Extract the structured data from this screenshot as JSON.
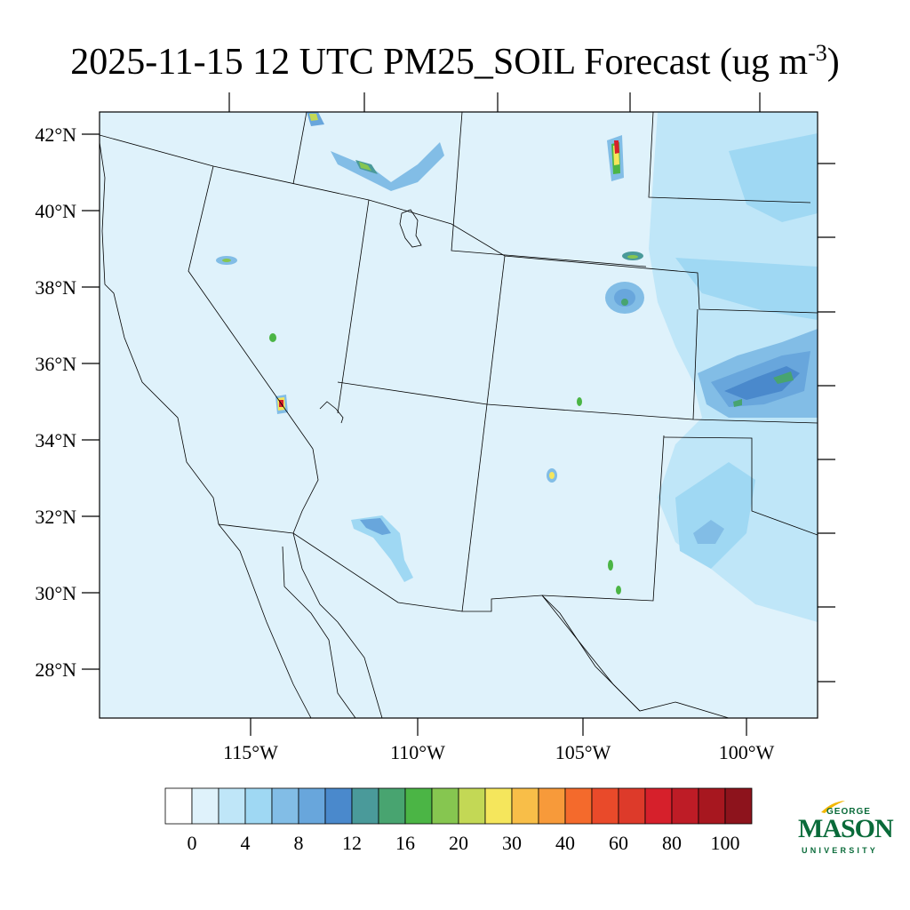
{
  "title": {
    "main": "2025-11-15 12 UTC PM25_SOIL Forecast (ug m",
    "sup": "-3",
    "end": ")"
  },
  "map": {
    "background_color": "#dff2fb",
    "line_color": "#000000",
    "lat_ticks": [
      {
        "lat": 42,
        "label": "42°N"
      },
      {
        "lat": 40,
        "label": "40°N"
      },
      {
        "lat": 38,
        "label": "38°N"
      },
      {
        "lat": 36,
        "label": "36°N"
      },
      {
        "lat": 34,
        "label": "34°N"
      },
      {
        "lat": 32,
        "label": "32°N"
      },
      {
        "lat": 30,
        "label": "30°N"
      },
      {
        "lat": 28,
        "label": "28°N"
      }
    ],
    "lon_ticks": [
      {
        "lon": -115,
        "label": "115°W"
      },
      {
        "lon": -110,
        "label": "110°W"
      },
      {
        "lon": -105,
        "label": "105°W"
      },
      {
        "lon": -100,
        "label": "100°W"
      }
    ]
  },
  "colorbar": {
    "colors": [
      "#ffffff",
      "#dff2fb",
      "#bfe6f8",
      "#9fd8f3",
      "#82bde6",
      "#68a6dc",
      "#4a89cc",
      "#4a9a9a",
      "#48a470",
      "#4bb545",
      "#86c650",
      "#c3d855",
      "#f5e65c",
      "#f8be48",
      "#f79a3a",
      "#f46a2c",
      "#e94a2a",
      "#dd3a2a",
      "#d6202b",
      "#be1c26",
      "#a7171f",
      "#8d131c"
    ],
    "labels": [
      "0",
      "4",
      "8",
      "12",
      "16",
      "20",
      "30",
      "40",
      "60",
      "80",
      "100"
    ]
  },
  "logo": {
    "line1": "GEORGE",
    "line2": "MASON",
    "line3": "UNIVERSITY",
    "color": "#0a6b3a",
    "accent": "#f2b705"
  }
}
